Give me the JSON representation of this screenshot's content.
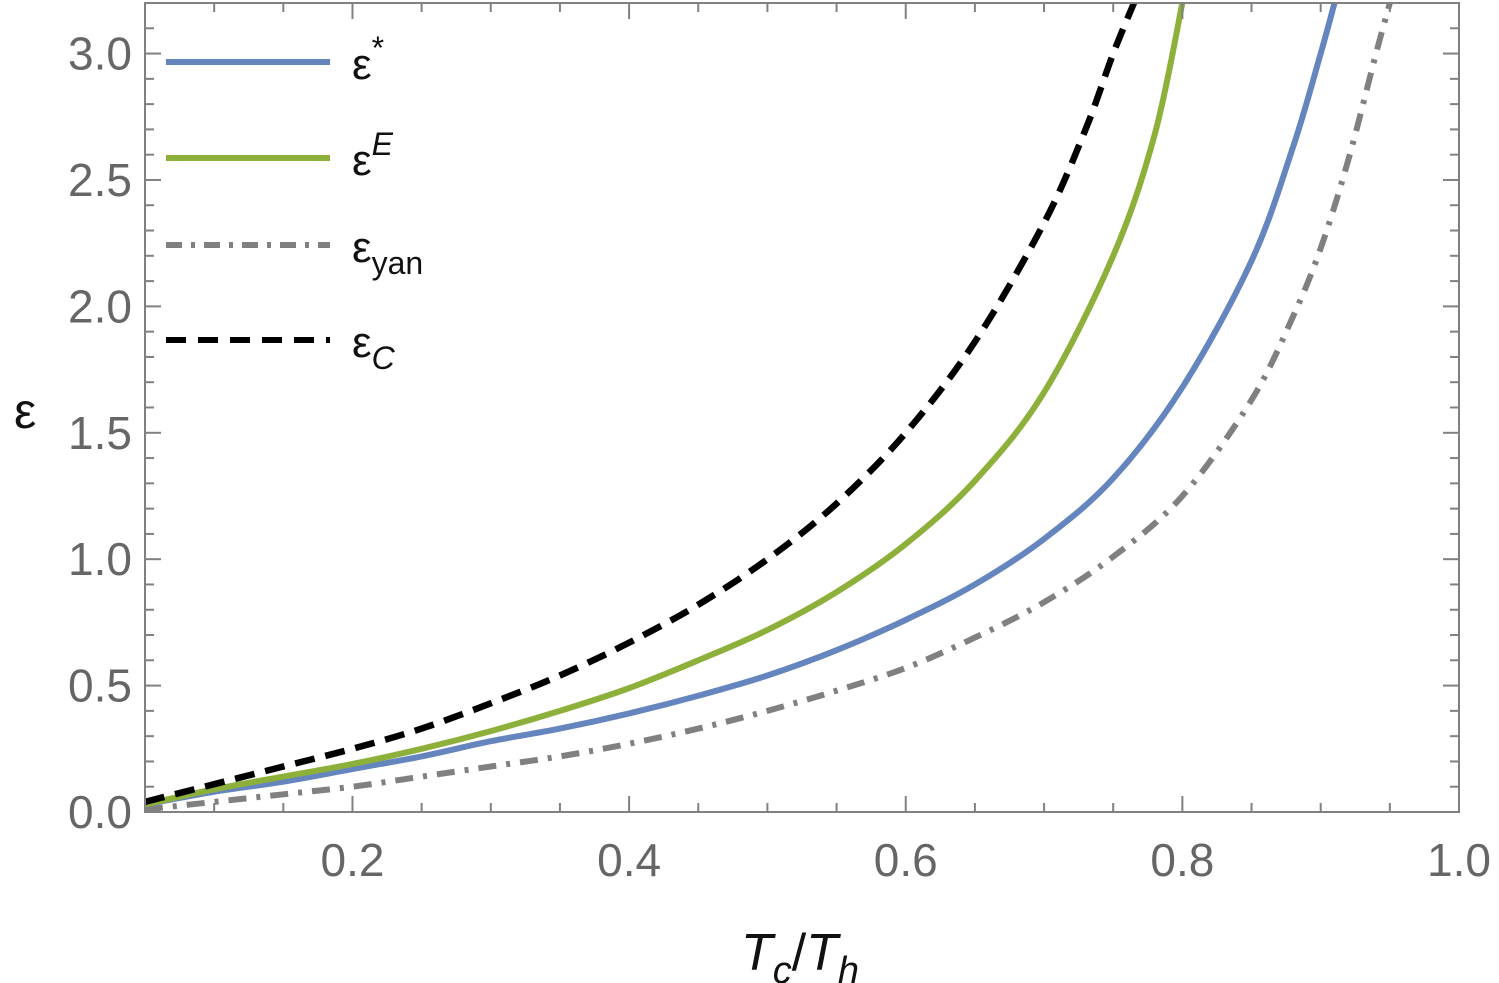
{
  "chart_data": {
    "type": "line",
    "title": "",
    "xlabel": {
      "main": "T",
      "sub1": "c",
      "slash": "/",
      "main2": "T",
      "sub2": "h"
    },
    "ylabel": "ε",
    "xlim": [
      0.05,
      1.0
    ],
    "ylim": [
      0.0,
      3.2
    ],
    "x_ticks": [
      0.2,
      0.4,
      0.6,
      0.8,
      1.0
    ],
    "x_tick_labels": [
      "0.2",
      "0.4",
      "0.6",
      "0.8",
      "1.0"
    ],
    "y_ticks": [
      0.0,
      0.5,
      1.0,
      1.5,
      2.0,
      2.5,
      3.0
    ],
    "y_tick_labels": [
      "0.0",
      "0.5",
      "1.0",
      "1.5",
      "2.0",
      "2.5",
      "3.0"
    ],
    "grid": false,
    "legend_position": "top-left",
    "series": [
      {
        "key": "eps_star",
        "label_base": "ε",
        "label_script": "*",
        "script_type": "sup",
        "script_italic": false,
        "color": "#6585be",
        "dash": "solid",
        "x": [
          0.05,
          0.1,
          0.15,
          0.2,
          0.25,
          0.3,
          0.35,
          0.4,
          0.45,
          0.5,
          0.55,
          0.6,
          0.65,
          0.7,
          0.75,
          0.8,
          0.85,
          0.88,
          0.9,
          0.91
        ],
        "y": [
          0.03,
          0.08,
          0.12,
          0.17,
          0.22,
          0.28,
          0.33,
          0.39,
          0.46,
          0.54,
          0.64,
          0.76,
          0.9,
          1.08,
          1.32,
          1.68,
          2.18,
          2.63,
          3.0,
          3.2
        ]
      },
      {
        "key": "eps_E",
        "label_base": "ε",
        "label_script": "E",
        "script_type": "sup",
        "script_italic": true,
        "color": "#8db03b",
        "dash": "solid",
        "x": [
          0.05,
          0.1,
          0.15,
          0.2,
          0.25,
          0.3,
          0.35,
          0.4,
          0.45,
          0.5,
          0.55,
          0.6,
          0.65,
          0.7,
          0.75,
          0.78,
          0.8
        ],
        "y": [
          0.03,
          0.09,
          0.14,
          0.19,
          0.25,
          0.32,
          0.4,
          0.49,
          0.6,
          0.72,
          0.87,
          1.06,
          1.31,
          1.66,
          2.2,
          2.68,
          3.2
        ]
      },
      {
        "key": "eps_yan",
        "label_base": "ε",
        "label_script": "yan",
        "script_type": "sub",
        "script_italic": false,
        "color": "#808080",
        "dash": "dashdot",
        "x": [
          0.05,
          0.1,
          0.15,
          0.2,
          0.25,
          0.3,
          0.35,
          0.4,
          0.45,
          0.5,
          0.55,
          0.6,
          0.65,
          0.7,
          0.75,
          0.8,
          0.85,
          0.88,
          0.9,
          0.92,
          0.94,
          0.95
        ],
        "y": [
          0.01,
          0.04,
          0.07,
          0.1,
          0.14,
          0.18,
          0.22,
          0.27,
          0.33,
          0.4,
          0.48,
          0.57,
          0.69,
          0.83,
          1.01,
          1.25,
          1.63,
          1.96,
          2.23,
          2.58,
          3.0,
          3.2
        ]
      },
      {
        "key": "eps_C",
        "label_base": "ε",
        "label_script": "C",
        "script_type": "sub",
        "script_italic": true,
        "color": "#000000",
        "dash": "dashed",
        "x": [
          0.05,
          0.1,
          0.15,
          0.2,
          0.25,
          0.3,
          0.35,
          0.4,
          0.45,
          0.5,
          0.55,
          0.6,
          0.65,
          0.7,
          0.73,
          0.75,
          0.765
        ],
        "y": [
          0.04,
          0.11,
          0.18,
          0.25,
          0.33,
          0.43,
          0.54,
          0.67,
          0.82,
          1.0,
          1.22,
          1.5,
          1.86,
          2.33,
          2.7,
          3.0,
          3.2
        ]
      }
    ]
  }
}
